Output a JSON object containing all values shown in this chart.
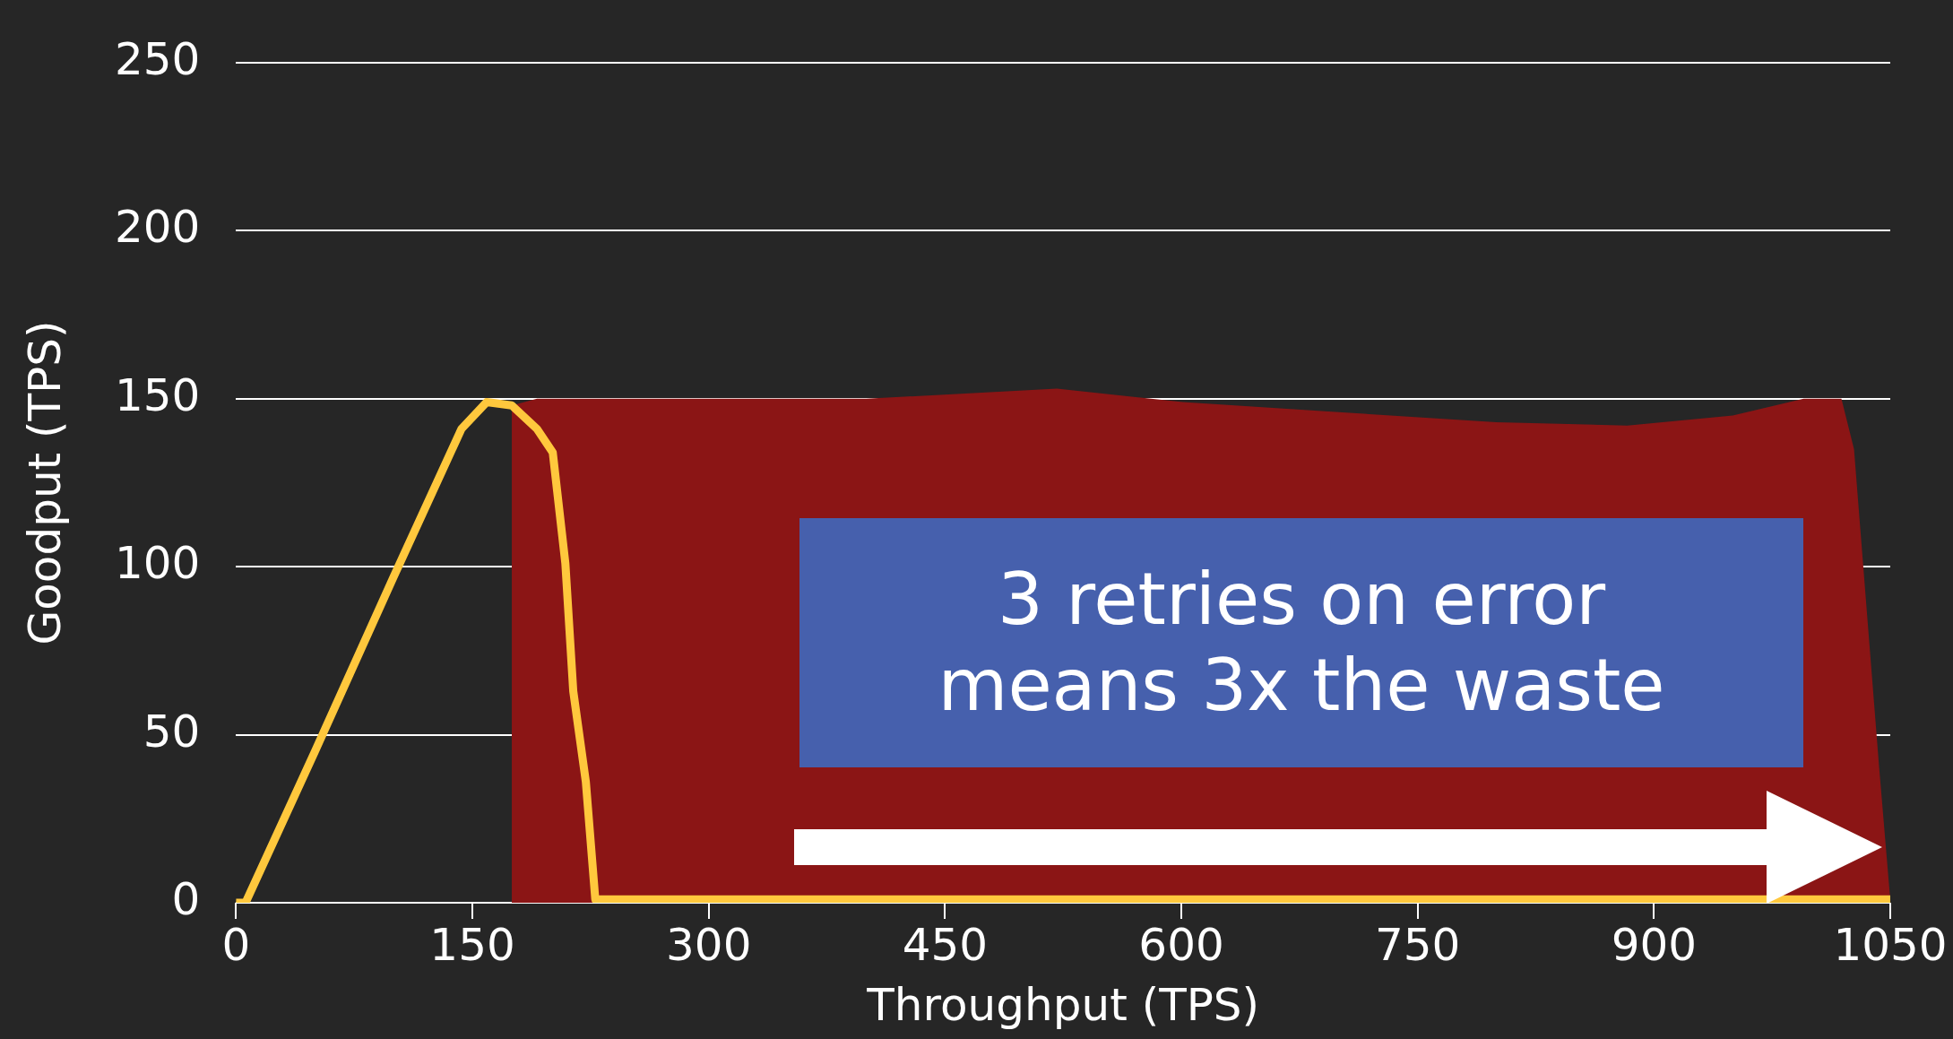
{
  "chart_data": {
    "type": "line",
    "xlabel": "Throughput (TPS)",
    "ylabel": "Goodput (TPS)",
    "x": [
      0,
      6,
      50,
      100,
      143,
      159,
      175,
      191,
      201,
      209,
      214,
      222,
      228,
      240,
      300,
      400,
      521,
      601,
      700,
      800,
      883,
      950,
      995,
      1019,
      1027,
      1043,
      1050
    ],
    "series": [
      {
        "type": "line",
        "color": "#ffc83d",
        "values": [
          0,
          0,
          45,
          97,
          141,
          149,
          148,
          141,
          134,
          101,
          63,
          36,
          1,
          1,
          1,
          1,
          1,
          1,
          1,
          1,
          1,
          1,
          1,
          1,
          1,
          1,
          1
        ]
      },
      {
        "type": "area",
        "color": "#8b1515",
        "values": [
          null,
          null,
          null,
          null,
          null,
          null,
          148,
          150,
          150,
          150,
          150,
          150,
          150,
          150,
          150,
          150,
          153,
          149,
          146,
          143,
          142,
          145,
          150,
          150,
          135,
          40,
          1
        ]
      }
    ],
    "xlim": [
      0,
      1050
    ],
    "xticks": [
      0,
      150,
      300,
      450,
      600,
      750,
      900,
      1050
    ],
    "ylim": [
      0,
      250
    ],
    "yticks": [
      0,
      50,
      100,
      150,
      200,
      250
    ],
    "grid": "y",
    "legend": false,
    "marker": "none",
    "line_style": "solid",
    "annotations": [
      "3 retries on error\nmeans 3x the waste"
    ]
  }
}
